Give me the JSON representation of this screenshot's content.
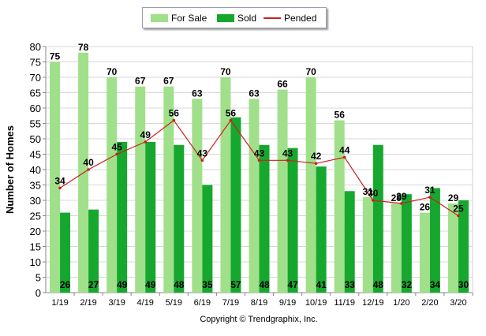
{
  "chart_data": {
    "type": "bar",
    "categories": [
      "1/19",
      "2/19",
      "3/19",
      "4/19",
      "5/19",
      "6/19",
      "7/19",
      "8/19",
      "9/19",
      "10/19",
      "11/19",
      "12/19",
      "1/20",
      "2/20",
      "3/20"
    ],
    "series": [
      {
        "name": "For Sale",
        "type": "bar",
        "color": "#a0e08a",
        "values": [
          75,
          78,
          70,
          67,
          67,
          63,
          70,
          63,
          66,
          70,
          56,
          31,
          29,
          26,
          29
        ]
      },
      {
        "name": "Sold",
        "type": "bar",
        "color": "#16a82e",
        "values": [
          26,
          27,
          49,
          49,
          48,
          35,
          57,
          48,
          47,
          41,
          33,
          48,
          32,
          34,
          30
        ]
      },
      {
        "name": "Pended",
        "type": "line",
        "color": "#cc1f1f",
        "values": [
          34,
          40,
          45,
          49,
          56,
          43,
          56,
          43,
          43,
          42,
          44,
          30,
          29,
          31,
          25
        ]
      }
    ],
    "ylabel": "Number of Homes",
    "xlabel": "",
    "ylim": [
      0,
      80
    ],
    "yticks": [
      0,
      5,
      10,
      15,
      20,
      25,
      30,
      35,
      40,
      45,
      50,
      55,
      60,
      65,
      70,
      75,
      80
    ],
    "grid": true,
    "legend_position": "top-center"
  },
  "footer": "Copyright © Trendgraphix, Inc."
}
